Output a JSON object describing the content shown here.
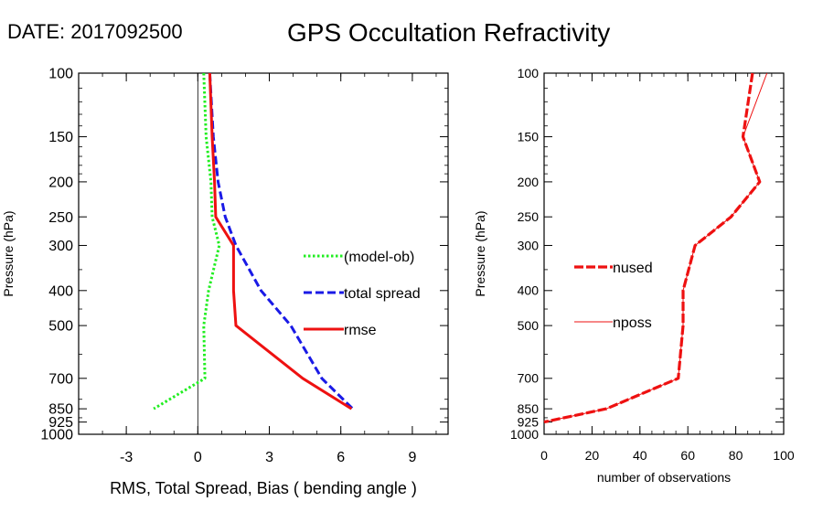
{
  "header": {
    "date_label": "DATE: 2017092500",
    "title": "GPS Occultation Refractivity"
  },
  "chart_data": [
    {
      "type": "line",
      "ylabel": "Pressure (hPa)",
      "xlabel": "RMS, Total Spread, Bias ( bending angle )",
      "xlim": [
        -5,
        10.5
      ],
      "ylim": [
        1000,
        100
      ],
      "y_scale": "log",
      "x_ticks": [
        -3,
        0,
        3,
        6,
        9
      ],
      "y_ticks": [
        100,
        150,
        200,
        250,
        300,
        400,
        500,
        700,
        850,
        925,
        1000
      ],
      "zero_line": 0,
      "legend_position": "right",
      "series": [
        {
          "name": "(model-ob)",
          "color": "#22ee22",
          "style": "dotted",
          "points": [
            [
              0.25,
              100
            ],
            [
              0.35,
              150
            ],
            [
              0.55,
              200
            ],
            [
              0.6,
              250
            ],
            [
              0.9,
              300
            ],
            [
              0.45,
              400
            ],
            [
              0.25,
              500
            ],
            [
              0.3,
              700
            ],
            [
              -1.85,
              850
            ]
          ]
        },
        {
          "name": "total spread",
          "color": "#1a1ae6",
          "style": "dashed",
          "points": [
            [
              0.5,
              100
            ],
            [
              0.65,
              150
            ],
            [
              0.85,
              200
            ],
            [
              1.15,
              250
            ],
            [
              1.6,
              300
            ],
            [
              2.65,
              400
            ],
            [
              3.9,
              500
            ],
            [
              5.2,
              700
            ],
            [
              6.5,
              850
            ]
          ]
        },
        {
          "name": "rmse",
          "color": "#ee1111",
          "style": "solid",
          "points": [
            [
              0.5,
              100
            ],
            [
              0.6,
              150
            ],
            [
              0.7,
              200
            ],
            [
              0.75,
              250
            ],
            [
              1.5,
              300
            ],
            [
              1.5,
              400
            ],
            [
              1.6,
              500
            ],
            [
              4.4,
              700
            ],
            [
              6.45,
              850
            ]
          ]
        }
      ]
    },
    {
      "type": "line",
      "ylabel": "Pressure (hPa)",
      "xlabel": "number of observations",
      "xlim": [
        0,
        100
      ],
      "ylim": [
        1000,
        100
      ],
      "y_scale": "log",
      "x_ticks": [
        0,
        20,
        40,
        60,
        80,
        100
      ],
      "y_ticks": [
        100,
        150,
        200,
        250,
        300,
        400,
        500,
        700,
        850,
        925,
        1000
      ],
      "legend_position": "left",
      "series": [
        {
          "name": "nused",
          "color": "#ee1111",
          "style": "dashed-thick",
          "points": [
            [
              87,
              100
            ],
            [
              83,
              150
            ],
            [
              90,
              200
            ],
            [
              78,
              250
            ],
            [
              63,
              300
            ],
            [
              58,
              400
            ],
            [
              58,
              500
            ],
            [
              56,
              700
            ],
            [
              26,
              850
            ],
            [
              0,
              925
            ]
          ]
        },
        {
          "name": "nposs",
          "color": "#ee1111",
          "style": "thin",
          "points": [
            [
              93,
              100
            ],
            [
              83,
              150
            ],
            [
              90,
              200
            ],
            [
              78,
              250
            ],
            [
              63,
              300
            ],
            [
              58,
              400
            ],
            [
              58,
              500
            ],
            [
              56,
              700
            ],
            [
              26,
              850
            ],
            [
              0,
              925
            ]
          ]
        }
      ]
    }
  ]
}
